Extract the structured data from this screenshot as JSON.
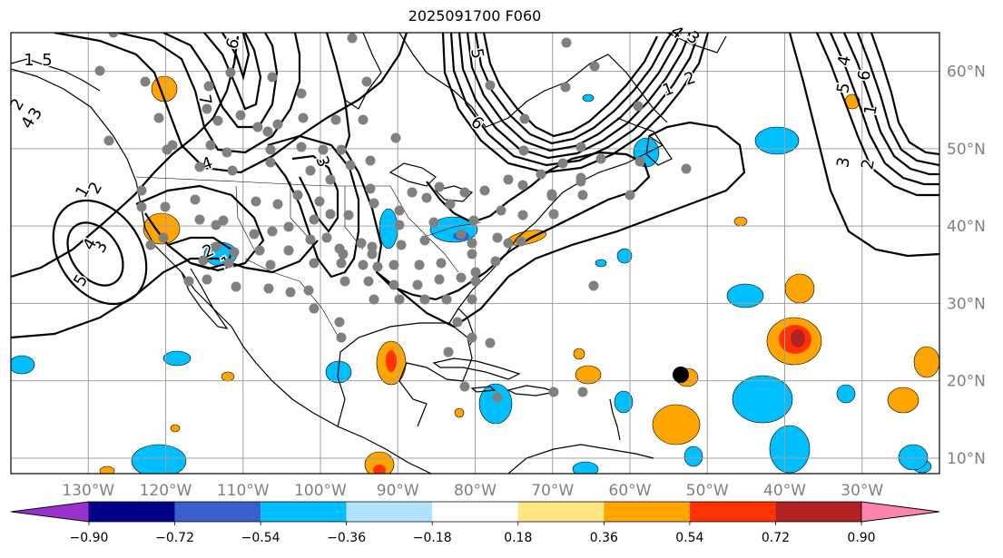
{
  "title": "2025091700 F060",
  "map": {
    "lon_range": [
      -140,
      -20
    ],
    "lat_range": [
      8,
      65
    ],
    "gridlines": true,
    "lon_labels": [
      "130°W",
      "120°W",
      "110°W",
      "100°W",
      "90°W",
      "80°W",
      "70°W",
      "60°W",
      "50°W",
      "40°W",
      "30°W"
    ],
    "lon_label_values": [
      -130,
      -120,
      -110,
      -100,
      -90,
      -80,
      -70,
      -60,
      -50,
      -40,
      -30
    ],
    "lat_labels": [
      "10°N",
      "20°N",
      "30°N",
      "40°N",
      "50°N",
      "60°N"
    ],
    "lat_label_values": [
      10,
      20,
      30,
      40,
      50,
      60
    ]
  },
  "contour_labels": [
    "1",
    "2",
    "3",
    "4",
    "5",
    "6",
    "7",
    "1",
    "2",
    "3",
    "4",
    "5",
    "1",
    "2",
    "3",
    "4",
    "5",
    "6",
    "1",
    "2",
    "3",
    "4",
    "5",
    "6",
    "1",
    "2",
    "3",
    "4"
  ],
  "colorbar": {
    "ticks": [
      "−0.90",
      "−0.72",
      "−0.54",
      "−0.36",
      "−0.18",
      "0.18",
      "0.36",
      "0.54",
      "0.72",
      "0.90"
    ],
    "colors": [
      "#9932cc",
      "#00008b",
      "#3a5fcd",
      "#00bfff",
      "#b0e2ff",
      "#ffffff",
      "#ffe680",
      "#ffa500",
      "#ff3300",
      "#b22222",
      "#ff82ab"
    ],
    "extend": "both"
  },
  "markers": {
    "station_color": "#808080",
    "storm_color": "#000000"
  }
}
